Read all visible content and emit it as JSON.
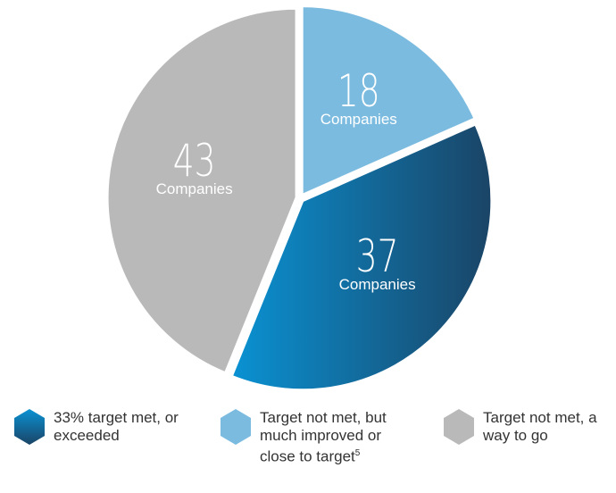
{
  "chart_data": {
    "type": "pie",
    "categories": [
      "Target not met, but much improved or close to target",
      "33% target met, or exceeded",
      "Target not met, a way to go"
    ],
    "values": [
      18,
      37,
      43
    ],
    "colors": [
      "#7bbbdf",
      [
        "#0a92d3",
        "#1a4466"
      ],
      "#b9b9b9"
    ],
    "slice_label": "Companies",
    "footnote_mark": "5",
    "legend_order": [
      1,
      0,
      2
    ]
  }
}
